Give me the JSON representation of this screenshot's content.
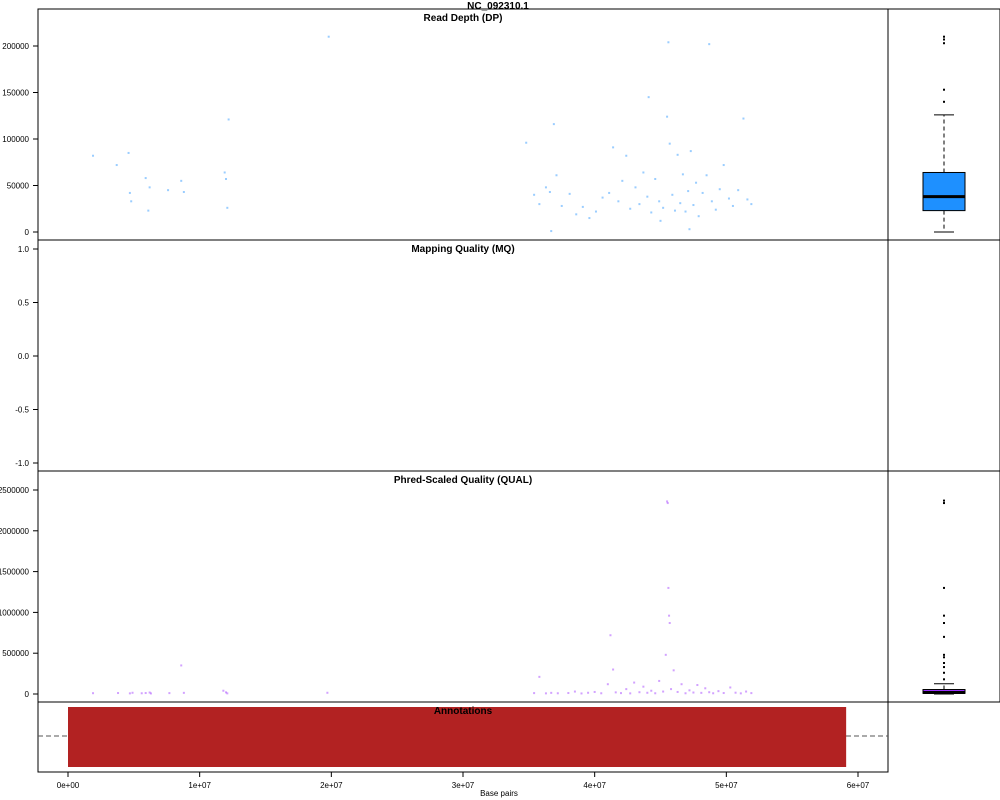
{
  "figure_title": "NC_092310.1",
  "colors": {
    "dp_points": "#1e90ff",
    "qual_points": "#9b30ff",
    "dp_box_fill": "#1e90ff",
    "qual_box_fill": "#9b30ff",
    "annotation_fill": "#b22222"
  },
  "chart_data": [
    {
      "panel": "dp",
      "type": "scatter",
      "title": "Read Depth (DP)",
      "xlim": [
        0,
        62000000
      ],
      "ylim": [
        0,
        215000
      ],
      "yticks": [
        0,
        50000,
        100000,
        150000,
        200000
      ],
      "ytick_labels": [
        "0",
        "50000",
        "100000",
        "150000",
        "200000"
      ],
      "points": [
        [
          1900000,
          82000
        ],
        [
          3700000,
          72000
        ],
        [
          4600000,
          85000
        ],
        [
          4700000,
          42000
        ],
        [
          4800000,
          33000
        ],
        [
          5900000,
          58000
        ],
        [
          6100000,
          23000
        ],
        [
          6200000,
          48000
        ],
        [
          7600000,
          45000
        ],
        [
          8600000,
          55000
        ],
        [
          8800000,
          43000
        ],
        [
          11900000,
          64000
        ],
        [
          12000000,
          57000
        ],
        [
          12100000,
          26000
        ],
        [
          12200000,
          121000
        ],
        [
          19800000,
          210000
        ],
        [
          34800000,
          96000
        ],
        [
          35400000,
          40000
        ],
        [
          35800000,
          30000
        ],
        [
          36300000,
          48000
        ],
        [
          36600000,
          43000
        ],
        [
          36900000,
          116000
        ],
        [
          37100000,
          61000
        ],
        [
          37500000,
          28000
        ],
        [
          38100000,
          41000
        ],
        [
          38600000,
          19000
        ],
        [
          39100000,
          27000
        ],
        [
          39600000,
          15000
        ],
        [
          40100000,
          22000
        ],
        [
          40600000,
          37000
        ],
        [
          41100000,
          42000
        ],
        [
          41400000,
          91000
        ],
        [
          41800000,
          33000
        ],
        [
          42100000,
          55000
        ],
        [
          42400000,
          82000
        ],
        [
          42700000,
          25000
        ],
        [
          43100000,
          48000
        ],
        [
          43400000,
          30000
        ],
        [
          43700000,
          64000
        ],
        [
          44000000,
          38000
        ],
        [
          44300000,
          21000
        ],
        [
          44600000,
          57000
        ],
        [
          44900000,
          33000
        ],
        [
          45200000,
          26000
        ],
        [
          45500000,
          124000
        ],
        [
          45600000,
          204000
        ],
        [
          45700000,
          95000
        ],
        [
          45900000,
          40000
        ],
        [
          46100000,
          23000
        ],
        [
          46300000,
          83000
        ],
        [
          46500000,
          31000
        ],
        [
          46700000,
          62000
        ],
        [
          46900000,
          22000
        ],
        [
          47100000,
          44000
        ],
        [
          47300000,
          87000
        ],
        [
          47500000,
          29000
        ],
        [
          47700000,
          53000
        ],
        [
          47900000,
          17000
        ],
        [
          48200000,
          42000
        ],
        [
          48500000,
          61000
        ],
        [
          48700000,
          202000
        ],
        [
          48900000,
          33000
        ],
        [
          49200000,
          24000
        ],
        [
          49500000,
          46000
        ],
        [
          49800000,
          72000
        ],
        [
          50200000,
          36000
        ],
        [
          50500000,
          28000
        ],
        [
          50900000,
          45000
        ],
        [
          51300000,
          122000
        ],
        [
          51600000,
          35000
        ],
        [
          51900000,
          30000
        ],
        [
          45000000,
          12000
        ],
        [
          47200000,
          3000
        ],
        [
          36700000,
          1000
        ],
        [
          44100000,
          145000
        ]
      ],
      "box": {
        "min": 0,
        "q1": 23000,
        "median": 38000,
        "q3": 64000,
        "max": 126000,
        "outliers": [
          140000,
          153000,
          203000,
          207000,
          210000
        ]
      }
    },
    {
      "panel": "mq",
      "type": "scatter",
      "title": "Mapping Quality (MQ)",
      "xlim": [
        0,
        62000000
      ],
      "ylim": [
        -1.1,
        1.05
      ],
      "yticks": [
        -1.0,
        -0.5,
        0.0,
        0.5,
        1.0
      ],
      "ytick_labels": [
        "-1.0",
        "-0.5",
        "0.0",
        "0.5",
        "1.0"
      ],
      "points": []
    },
    {
      "panel": "qual",
      "type": "scatter",
      "title": "Phred-Scaled Quality (QUAL)",
      "xlim": [
        0,
        62000000
      ],
      "ylim": [
        -50000,
        2600000
      ],
      "yticks": [
        0,
        500000,
        1000000,
        1500000,
        2000000,
        2500000
      ],
      "ytick_labels": [
        "0",
        "500000",
        "1000000",
        "1500000",
        "2000000",
        "2500000"
      ],
      "points": [
        [
          1900000,
          10000
        ],
        [
          3800000,
          12000
        ],
        [
          4700000,
          8000
        ],
        [
          4900000,
          15000
        ],
        [
          5600000,
          9000
        ],
        [
          5900000,
          12000
        ],
        [
          6200000,
          18000
        ],
        [
          6300000,
          7000
        ],
        [
          7700000,
          11000
        ],
        [
          8600000,
          350000
        ],
        [
          8800000,
          14000
        ],
        [
          11800000,
          40000
        ],
        [
          12000000,
          20000
        ],
        [
          12100000,
          8000
        ],
        [
          19700000,
          15000
        ],
        [
          35400000,
          11000
        ],
        [
          35800000,
          210000
        ],
        [
          36300000,
          8000
        ],
        [
          36700000,
          14000
        ],
        [
          37200000,
          9000
        ],
        [
          38000000,
          12000
        ],
        [
          38500000,
          30000
        ],
        [
          39000000,
          7000
        ],
        [
          39500000,
          15000
        ],
        [
          40000000,
          25000
        ],
        [
          40500000,
          9000
        ],
        [
          41000000,
          120000
        ],
        [
          41200000,
          720000
        ],
        [
          41400000,
          300000
        ],
        [
          41600000,
          20000
        ],
        [
          42000000,
          11000
        ],
        [
          42400000,
          60000
        ],
        [
          42700000,
          8000
        ],
        [
          43000000,
          140000
        ],
        [
          43400000,
          22000
        ],
        [
          43700000,
          90000
        ],
        [
          44000000,
          15000
        ],
        [
          44300000,
          40000
        ],
        [
          44600000,
          9000
        ],
        [
          44900000,
          160000
        ],
        [
          45200000,
          30000
        ],
        [
          45400000,
          480000
        ],
        [
          45500000,
          2360000
        ],
        [
          45550000,
          2340000
        ],
        [
          45600000,
          1300000
        ],
        [
          45650000,
          960000
        ],
        [
          45700000,
          870000
        ],
        [
          45800000,
          60000
        ],
        [
          46000000,
          290000
        ],
        [
          46300000,
          25000
        ],
        [
          46600000,
          120000
        ],
        [
          46900000,
          9000
        ],
        [
          47200000,
          45000
        ],
        [
          47500000,
          18000
        ],
        [
          47800000,
          110000
        ],
        [
          48100000,
          14000
        ],
        [
          48400000,
          70000
        ],
        [
          48700000,
          22000
        ],
        [
          49000000,
          9000
        ],
        [
          49400000,
          35000
        ],
        [
          49800000,
          12000
        ],
        [
          50300000,
          80000
        ],
        [
          50700000,
          16000
        ],
        [
          51100000,
          8000
        ],
        [
          51500000,
          30000
        ],
        [
          51900000,
          11000
        ]
      ],
      "box": {
        "min": 0,
        "q1": 8000,
        "median": 18000,
        "q3": 55000,
        "max": 125000,
        "outliers": [
          180000,
          260000,
          330000,
          380000,
          450000,
          480000,
          700000,
          870000,
          960000,
          1300000,
          2340000,
          2370000
        ]
      }
    },
    {
      "panel": "annotations",
      "type": "bar",
      "title": "Annotations",
      "xlabel": "Base pairs",
      "xlim": [
        0,
        62000000
      ],
      "xticks": [
        0,
        10000000,
        20000000,
        30000000,
        40000000,
        50000000,
        60000000
      ],
      "xtick_labels": [
        "0e+00",
        "1e+07",
        "2e+07",
        "3e+07",
        "4e+07",
        "5e+07",
        "6e+07"
      ],
      "segments": [
        {
          "start": 0,
          "end": 59100000
        }
      ]
    }
  ]
}
